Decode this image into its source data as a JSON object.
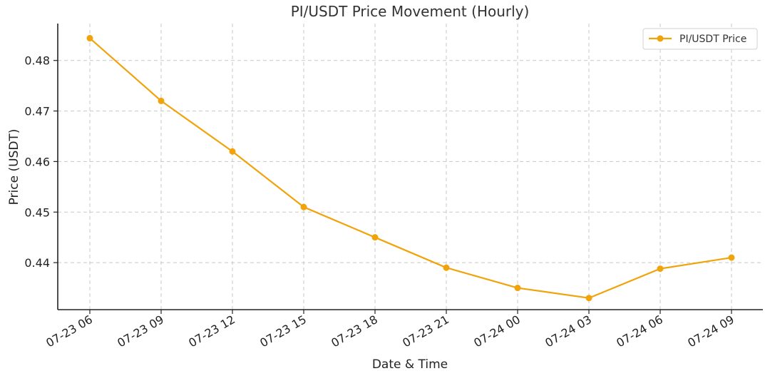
{
  "chart_data": {
    "type": "line",
    "title": "PI/USDT Price Movement (Hourly)",
    "xlabel": "Date & Time",
    "ylabel": "Price (USDT)",
    "categories": [
      "07-23 06",
      "07-23 09",
      "07-23 12",
      "07-23 15",
      "07-23 18",
      "07-23 21",
      "07-24 00",
      "07-24 03",
      "07-24 06",
      "07-24 09"
    ],
    "series": [
      {
        "name": "PI/USDT Price",
        "color": "#f0a30a",
        "values": [
          0.4844,
          0.472,
          0.462,
          0.451,
          0.445,
          0.439,
          0.435,
          0.433,
          0.4388,
          0.441
        ]
      }
    ],
    "yticks": [
      0.44,
      0.45,
      0.46,
      0.47,
      0.48
    ],
    "ylim": [
      0.4307,
      0.4873
    ],
    "grid": true,
    "legend_position": "top-right"
  }
}
